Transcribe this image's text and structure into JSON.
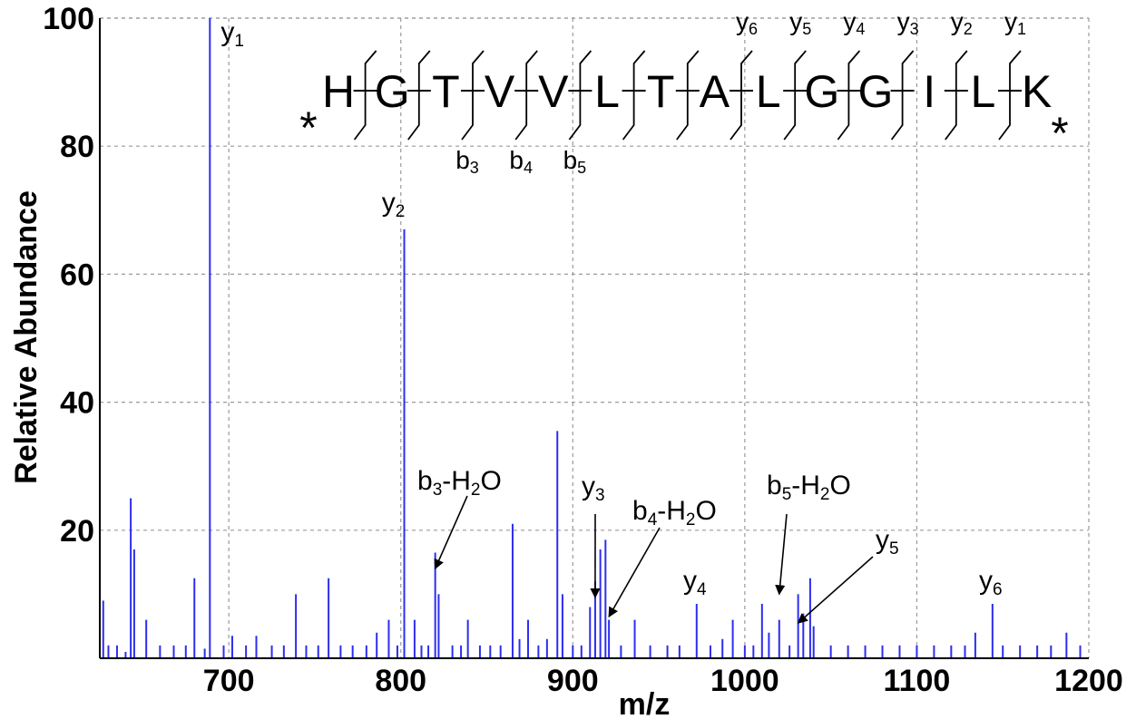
{
  "chart_data": {
    "type": "bar",
    "xlabel": "m/z",
    "ylabel": "Relative Abundance",
    "xlim": [
      625,
      1200
    ],
    "ylim": [
      0,
      100
    ],
    "x_ticks": [
      700,
      800,
      900,
      1000,
      1100,
      1200
    ],
    "y_ticks": [
      20,
      40,
      60,
      80,
      100
    ],
    "grid": true,
    "peak_color": "#2d2df0",
    "peaks": [
      {
        "x": 627,
        "y": 9
      },
      {
        "x": 630,
        "y": 2
      },
      {
        "x": 635,
        "y": 2
      },
      {
        "x": 640,
        "y": 1
      },
      {
        "x": 643,
        "y": 25
      },
      {
        "x": 645,
        "y": 17
      },
      {
        "x": 652,
        "y": 6
      },
      {
        "x": 660,
        "y": 2
      },
      {
        "x": 668,
        "y": 2
      },
      {
        "x": 675,
        "y": 2
      },
      {
        "x": 680,
        "y": 12.5
      },
      {
        "x": 686,
        "y": 1.5
      },
      {
        "x": 689,
        "y": 100
      },
      {
        "x": 697,
        "y": 2
      },
      {
        "x": 702,
        "y": 3.5
      },
      {
        "x": 710,
        "y": 2
      },
      {
        "x": 716,
        "y": 3.5
      },
      {
        "x": 725,
        "y": 2
      },
      {
        "x": 732,
        "y": 2
      },
      {
        "x": 739,
        "y": 10
      },
      {
        "x": 745,
        "y": 2
      },
      {
        "x": 752,
        "y": 2
      },
      {
        "x": 758,
        "y": 12.5
      },
      {
        "x": 765,
        "y": 2
      },
      {
        "x": 772,
        "y": 2
      },
      {
        "x": 780,
        "y": 2
      },
      {
        "x": 786,
        "y": 4
      },
      {
        "x": 793,
        "y": 6
      },
      {
        "x": 798,
        "y": 2
      },
      {
        "x": 802,
        "y": 67
      },
      {
        "x": 808,
        "y": 6
      },
      {
        "x": 812,
        "y": 2
      },
      {
        "x": 816,
        "y": 2
      },
      {
        "x": 820,
        "y": 16.5
      },
      {
        "x": 822,
        "y": 10
      },
      {
        "x": 830,
        "y": 2
      },
      {
        "x": 835,
        "y": 2
      },
      {
        "x": 839,
        "y": 6
      },
      {
        "x": 846,
        "y": 2
      },
      {
        "x": 852,
        "y": 2
      },
      {
        "x": 858,
        "y": 2
      },
      {
        "x": 865,
        "y": 21
      },
      {
        "x": 869,
        "y": 3
      },
      {
        "x": 874,
        "y": 6
      },
      {
        "x": 880,
        "y": 2
      },
      {
        "x": 885,
        "y": 3
      },
      {
        "x": 891,
        "y": 35.5
      },
      {
        "x": 894,
        "y": 10
      },
      {
        "x": 900,
        "y": 2
      },
      {
        "x": 905,
        "y": 2
      },
      {
        "x": 910,
        "y": 8
      },
      {
        "x": 913,
        "y": 12
      },
      {
        "x": 916,
        "y": 17
      },
      {
        "x": 919,
        "y": 18.5
      },
      {
        "x": 921,
        "y": 6
      },
      {
        "x": 928,
        "y": 2
      },
      {
        "x": 936,
        "y": 6
      },
      {
        "x": 945,
        "y": 2
      },
      {
        "x": 955,
        "y": 2
      },
      {
        "x": 962,
        "y": 2
      },
      {
        "x": 972,
        "y": 8.5
      },
      {
        "x": 980,
        "y": 2
      },
      {
        "x": 987,
        "y": 3
      },
      {
        "x": 993,
        "y": 6
      },
      {
        "x": 1000,
        "y": 2
      },
      {
        "x": 1005,
        "y": 2
      },
      {
        "x": 1010,
        "y": 8.5
      },
      {
        "x": 1014,
        "y": 4
      },
      {
        "x": 1020,
        "y": 6
      },
      {
        "x": 1026,
        "y": 2
      },
      {
        "x": 1031,
        "y": 10
      },
      {
        "x": 1034,
        "y": 7
      },
      {
        "x": 1038,
        "y": 12.5
      },
      {
        "x": 1040,
        "y": 5
      },
      {
        "x": 1050,
        "y": 2
      },
      {
        "x": 1060,
        "y": 2
      },
      {
        "x": 1070,
        "y": 2
      },
      {
        "x": 1080,
        "y": 2
      },
      {
        "x": 1090,
        "y": 2
      },
      {
        "x": 1100,
        "y": 2
      },
      {
        "x": 1110,
        "y": 2
      },
      {
        "x": 1120,
        "y": 2
      },
      {
        "x": 1128,
        "y": 2
      },
      {
        "x": 1134,
        "y": 4
      },
      {
        "x": 1144,
        "y": 8.5
      },
      {
        "x": 1150,
        "y": 2
      },
      {
        "x": 1160,
        "y": 2
      },
      {
        "x": 1170,
        "y": 2
      },
      {
        "x": 1178,
        "y": 2
      },
      {
        "x": 1187,
        "y": 4
      },
      {
        "x": 1195,
        "y": 2
      }
    ],
    "peak_labels": [
      {
        "x": 689,
        "y": 100,
        "base": "y",
        "sub": "1"
      },
      {
        "x": 802,
        "y": 67,
        "base": "y",
        "sub": "2"
      },
      {
        "x": 972,
        "y": 8.5,
        "base": "y",
        "sub": "4"
      },
      {
        "x": 1144,
        "y": 8.5,
        "base": "y",
        "sub": "6"
      }
    ],
    "arrow_labels": [
      {
        "base": "b",
        "sub": "3",
        "suffix": "-H",
        "sub2": "2",
        "suffix2": "O",
        "target_x": 820,
        "target_y": 14
      },
      {
        "base": "y",
        "sub": "3",
        "target_x": 913,
        "target_y": 9.5
      },
      {
        "base": "b",
        "sub": "4",
        "suffix": "-H",
        "sub2": "2",
        "suffix2": "O",
        "target_x": 921,
        "target_y": 6.5
      },
      {
        "base": "b",
        "sub": "5",
        "suffix": "-H",
        "sub2": "2",
        "suffix2": "O",
        "target_x": 1020,
        "target_y": 10
      },
      {
        "base": "y",
        "sub": "5",
        "target_x": 1031,
        "target_y": 5.5
      }
    ],
    "sequence": {
      "residues": [
        "H",
        "G",
        "T",
        "V",
        "V",
        "L",
        "T",
        "A",
        "L",
        "G",
        "G",
        "I",
        "L",
        "K"
      ],
      "terminal_mark": "*",
      "b_ions": [
        {
          "after": 3,
          "base": "b",
          "sub": "3"
        },
        {
          "after": 4,
          "base": "b",
          "sub": "4"
        },
        {
          "after": 5,
          "base": "b",
          "sub": "5"
        }
      ],
      "y_ions": [
        {
          "before_end": 6,
          "base": "y",
          "sub": "6"
        },
        {
          "before_end": 5,
          "base": "y",
          "sub": "5"
        },
        {
          "before_end": 4,
          "base": "y",
          "sub": "4"
        },
        {
          "before_end": 3,
          "base": "y",
          "sub": "3"
        },
        {
          "before_end": 2,
          "base": "y",
          "sub": "2"
        },
        {
          "before_end": 1,
          "base": "y",
          "sub": "1"
        }
      ]
    }
  }
}
